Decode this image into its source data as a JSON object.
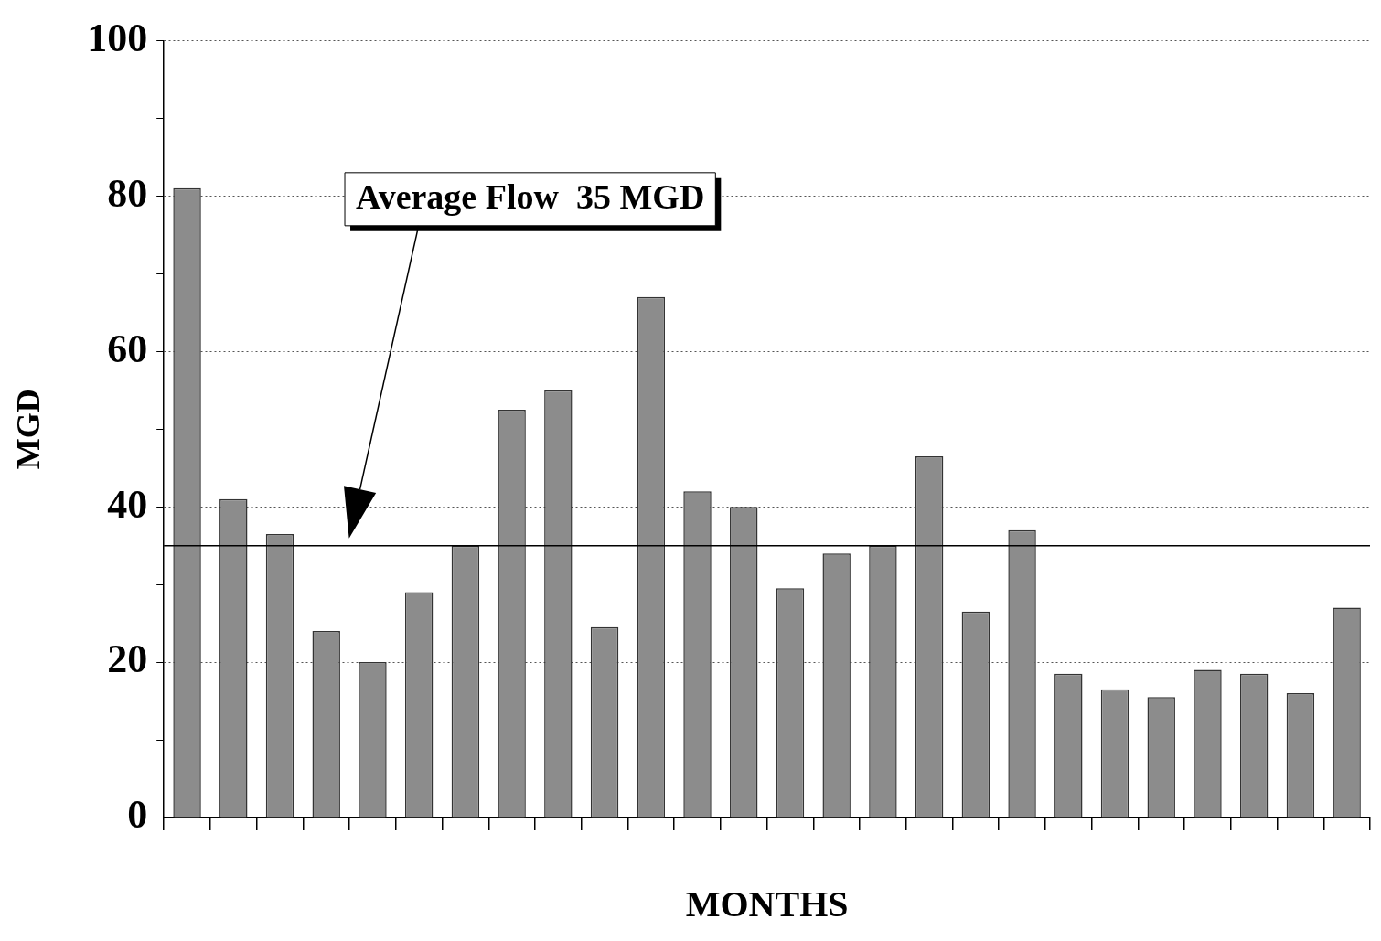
{
  "chart_data": {
    "type": "bar",
    "xlabel": "MONTHS",
    "ylabel": "MGD",
    "categories": [
      null,
      null,
      null,
      null,
      null,
      null,
      null,
      null,
      null,
      null,
      null,
      null,
      null,
      null,
      null,
      null,
      null,
      null,
      null,
      null,
      null,
      null,
      null,
      null,
      null,
      null
    ],
    "values": [
      81,
      41,
      36.5,
      24,
      20,
      29,
      35,
      52.5,
      55,
      24.5,
      67,
      42,
      40,
      29.5,
      34,
      35,
      46.5,
      26.5,
      37,
      18.5,
      16.5,
      15.5,
      19,
      18.5,
      16,
      27
    ],
    "color": "#8c8c8c",
    "ylim": [
      0,
      100
    ],
    "yticks": [
      0,
      {
        "value": 10,
        "label": null
      },
      20,
      {
        "value": 30,
        "label": null
      },
      40,
      {
        "value": 50,
        "label": null
      },
      60,
      {
        "value": 70,
        "label": null
      },
      80,
      {
        "value": 90,
        "label": null
      },
      100
    ],
    "grid": "y",
    "tick_labels": "y",
    "legend": false,
    "ref_lines": [
      {
        "axis": "y",
        "value": 35,
        "color": "#000000",
        "label": "Average Flow  35 MGD"
      }
    ]
  }
}
